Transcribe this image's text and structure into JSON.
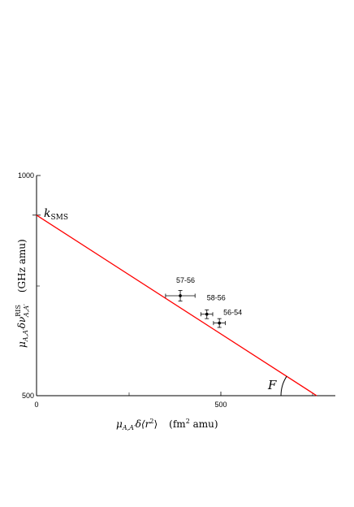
{
  "chart_data": {
    "type": "scatter",
    "xlabel": "μA,A′δ⟨r²⟩   (fm² amu)",
    "ylabel": "μA,A′δνRISA,A′  (GHz amu)",
    "xlim": [
      0,
      810
    ],
    "ylim": [
      500,
      1000
    ],
    "x_ticks": [
      {
        "value": 0,
        "label": "0"
      },
      {
        "value": 500,
        "label": "500"
      }
    ],
    "y_ticks": [
      {
        "value": 500,
        "label": "500"
      },
      {
        "value": 1000,
        "label": "1000"
      }
    ],
    "series": [
      {
        "points": [
          {
            "label": "57-56",
            "x": 390,
            "y": 727,
            "xerr": 40,
            "yerr": 12
          },
          {
            "label": "58-56",
            "x": 462,
            "y": 685,
            "xerr": 16,
            "yerr": 10
          },
          {
            "label": "56-54",
            "x": 496,
            "y": 665,
            "xerr": 16,
            "yerr": 10
          }
        ]
      }
    ],
    "fit_line": {
      "x": [
        0,
        760
      ],
      "y": [
        910,
        500
      ],
      "color": "#ff0000"
    },
    "annotations": {
      "intercept_label": "kSMS",
      "angle_label": "F"
    }
  }
}
